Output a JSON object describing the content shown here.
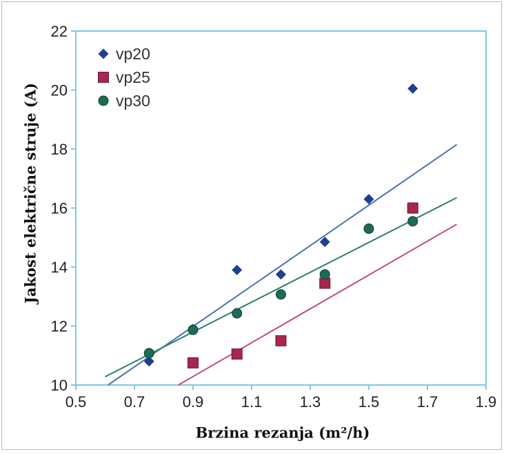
{
  "chart_data": {
    "type": "scatter",
    "title": "",
    "xlabel": "Brzina rezanja (m²/h)",
    "ylabel": "Jakost električne struje (A)",
    "xlim": [
      0.5,
      1.9
    ],
    "ylim": [
      10,
      22
    ],
    "xticks": [
      "0.5",
      "0.7",
      "0.9",
      "1.1",
      "1.3",
      "1.5",
      "1.7",
      "1.9"
    ],
    "yticks": [
      "10",
      "12",
      "14",
      "16",
      "18",
      "20",
      "22"
    ],
    "grid": false,
    "legend_position": "top-left",
    "series": [
      {
        "name": "vp20",
        "marker": "diamond",
        "color": "#1f3f8f",
        "line_color": "#4a6fb5",
        "x": [
          0.75,
          0.9,
          1.05,
          1.2,
          1.35,
          1.5,
          1.65
        ],
        "y": [
          10.8,
          11.9,
          13.9,
          13.75,
          14.85,
          16.3,
          20.05
        ],
        "trend": {
          "x": [
            0.61,
            1.8
          ],
          "y": [
            10.0,
            18.15
          ]
        }
      },
      {
        "name": "vp25",
        "marker": "square",
        "color": "#a8274d",
        "line_color": "#c4506d",
        "x": [
          0.9,
          1.05,
          1.2,
          1.35,
          1.65
        ],
        "y": [
          10.75,
          11.05,
          11.5,
          13.45,
          16.0
        ],
        "trend": {
          "x": [
            0.85,
            1.8
          ],
          "y": [
            10.0,
            15.45
          ]
        }
      },
      {
        "name": "vp30",
        "marker": "circle",
        "color": "#1e6b55",
        "line_color": "#2f7d68",
        "x": [
          0.75,
          0.9,
          1.05,
          1.2,
          1.35,
          1.5,
          1.65
        ],
        "y": [
          11.08,
          11.87,
          12.43,
          13.07,
          13.75,
          15.3,
          15.55
        ],
        "trend": {
          "x": [
            0.6,
            1.8
          ],
          "y": [
            10.28,
            16.35
          ]
        }
      }
    ]
  }
}
